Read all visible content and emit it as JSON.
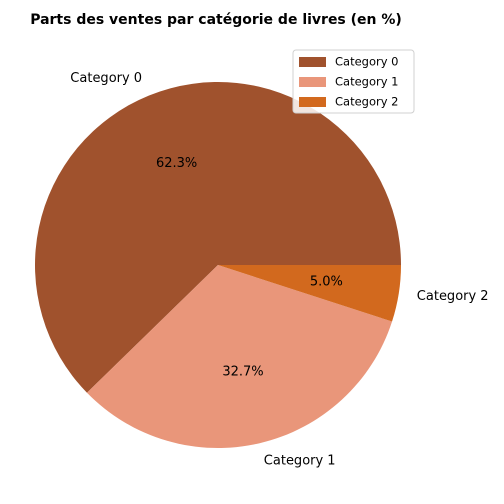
{
  "chart_data": {
    "type": "pie",
    "title": "Parts des ventes par catégorie de livres (en %)",
    "categories": [
      "Category 0",
      "Category 1",
      "Category 2"
    ],
    "values": [
      62.3,
      32.7,
      5.0
    ],
    "value_labels": [
      "62.3%",
      "32.7%",
      "5.0%"
    ],
    "colors": [
      "#a0522d",
      "#e9967a",
      "#d2691e"
    ],
    "start_angle_deg": 0,
    "direction": "counterclockwise",
    "legend": {
      "placement": "upper-right",
      "entries": [
        "Category 0",
        "Category 1",
        "Category 2"
      ]
    }
  }
}
